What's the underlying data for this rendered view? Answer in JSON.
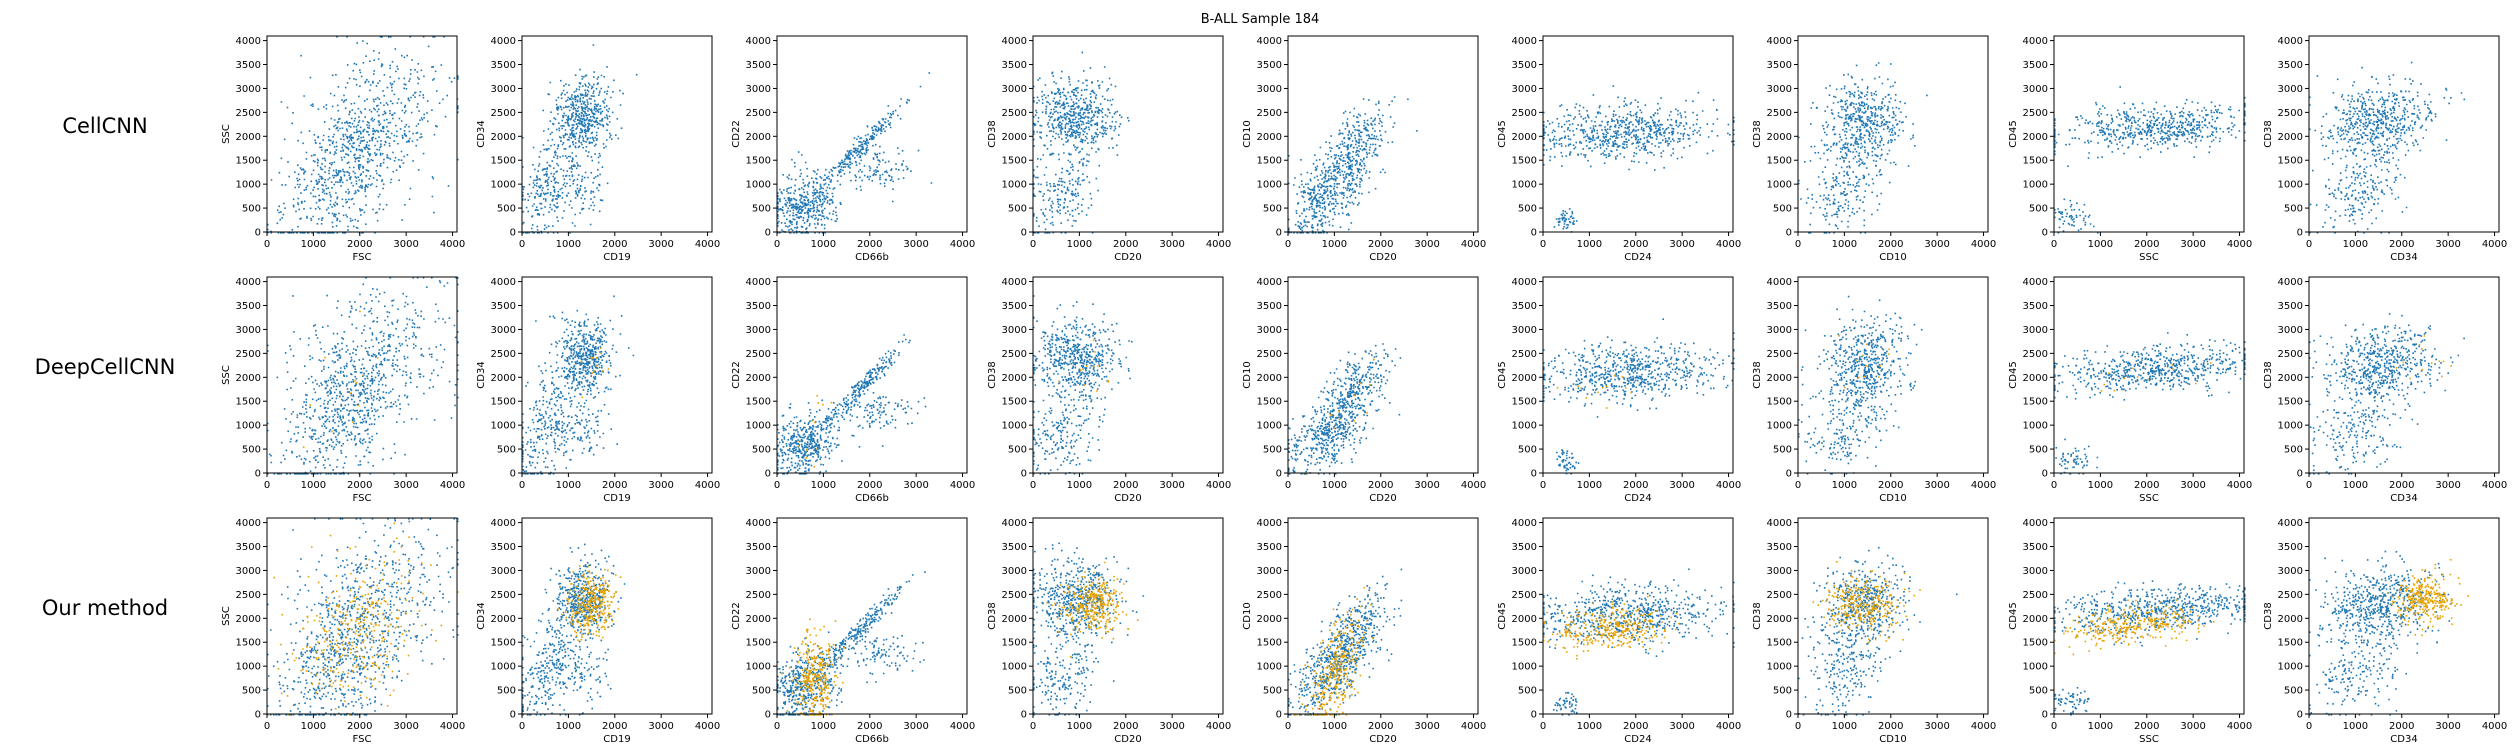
{
  "figure": {
    "title": "B-ALL Sample 184",
    "colors": {
      "background_cells": "#1f77b4",
      "selected_cells": "#e8a200"
    }
  },
  "chart_data": {
    "type": "scatter",
    "title": "B-ALL Sample 184",
    "xlim": [
      0,
      4096
    ],
    "ylim": [
      0,
      4096
    ],
    "ticks": [
      0,
      500,
      1000,
      1500,
      2000,
      2500,
      3000,
      3500,
      4000
    ],
    "x_ticks": [
      0,
      1000,
      2000,
      3000,
      4000
    ],
    "rows": [
      {
        "label": "CellCNN",
        "highlight": "none"
      },
      {
        "label": "DeepCellCNN",
        "highlight": "sparse"
      },
      {
        "label": "Our method",
        "highlight": "dense"
      }
    ],
    "panels": [
      {
        "xlabel": "FSC",
        "ylabel": "SSC"
      },
      {
        "xlabel": "CD19",
        "ylabel": "CD34"
      },
      {
        "xlabel": "CD66b",
        "ylabel": "CD22"
      },
      {
        "xlabel": "CD20",
        "ylabel": "CD38"
      },
      {
        "xlabel": "CD20",
        "ylabel": "CD10"
      },
      {
        "xlabel": "CD24",
        "ylabel": "CD45"
      },
      {
        "xlabel": "CD10",
        "ylabel": "CD38"
      },
      {
        "xlabel": "SSC",
        "ylabel": "CD45"
      },
      {
        "xlabel": "CD34",
        "ylabel": "CD38"
      }
    ]
  }
}
